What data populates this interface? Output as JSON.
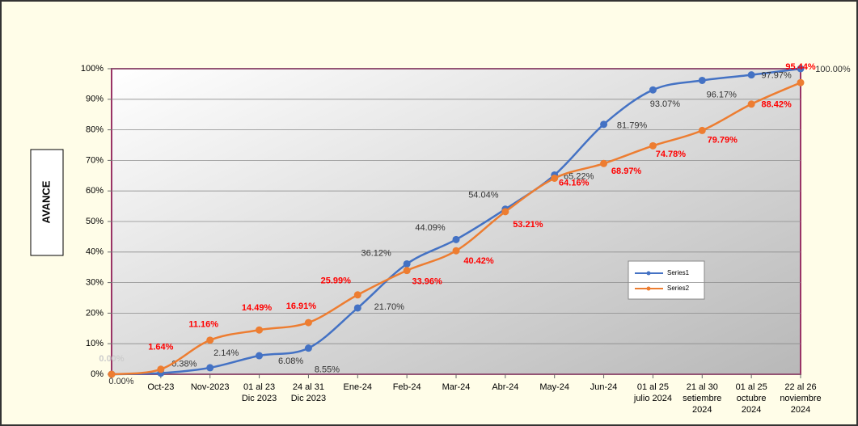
{
  "chart_data": {
    "type": "line",
    "y_axis_label": "AVANCE",
    "categories": [
      null,
      "Oct-23",
      "Nov-2023",
      "01 al 23 Dic 2023",
      "24 al 31 Dic 2023",
      "Ene-24",
      "Feb-24",
      "Mar-24",
      "Abr-24",
      "May-24",
      "Jun-24",
      "01 al 25 julio 2024",
      "21 al 30 setiembre 2024",
      "01 al 25 octubre 2024",
      "22 al 26 noviembre 2024"
    ],
    "series": [
      {
        "name": "Series1",
        "color": "#4472c4",
        "values": [
          0,
          0.38,
          2.14,
          6.08,
          8.55,
          21.7,
          36.12,
          44.09,
          54.04,
          65.22,
          81.79,
          93.07,
          96.17,
          97.97,
          100.0
        ],
        "value_labels": [
          "0.00%",
          "0.38%",
          "2.14%",
          "6.08%",
          "8.55%",
          "21.70%",
          "36.12%",
          "44.09%",
          "54.04%",
          "65.22%",
          "81.79%",
          "93.07%",
          "96.17%",
          "97.97%",
          "100.00%"
        ]
      },
      {
        "name": "Series2",
        "color": "#ed7d31",
        "values": [
          0,
          1.64,
          11.16,
          14.49,
          16.91,
          25.99,
          33.96,
          40.42,
          53.21,
          64.16,
          68.97,
          74.78,
          79.79,
          88.42,
          95.44
        ],
        "value_labels": [
          "0.00%",
          "1.64%",
          "11.16%",
          "14.49%",
          "16.91%",
          "25.99%",
          "33.96%",
          "40.42%",
          "53.21%",
          "64.16%",
          "68.97%",
          "74.78%",
          "79.79%",
          "88.42%",
          "95.44%"
        ]
      }
    ],
    "ylim": [
      0,
      100
    ],
    "yticks": [
      {
        "value": 0,
        "label": "0%"
      },
      {
        "value": 10,
        "label": "10%"
      },
      {
        "value": 20,
        "label": "20%"
      },
      {
        "value": 30,
        "label": "30%"
      },
      {
        "value": 40,
        "label": "40%"
      },
      {
        "value": 50,
        "label": "50%"
      },
      {
        "value": 60,
        "label": "60%"
      },
      {
        "value": 70,
        "label": "70%"
      },
      {
        "value": 80,
        "label": "80%"
      },
      {
        "value": 90,
        "label": "90%"
      },
      {
        "value": 100,
        "label": "100%"
      }
    ],
    "grid": true,
    "legend": "right"
  }
}
